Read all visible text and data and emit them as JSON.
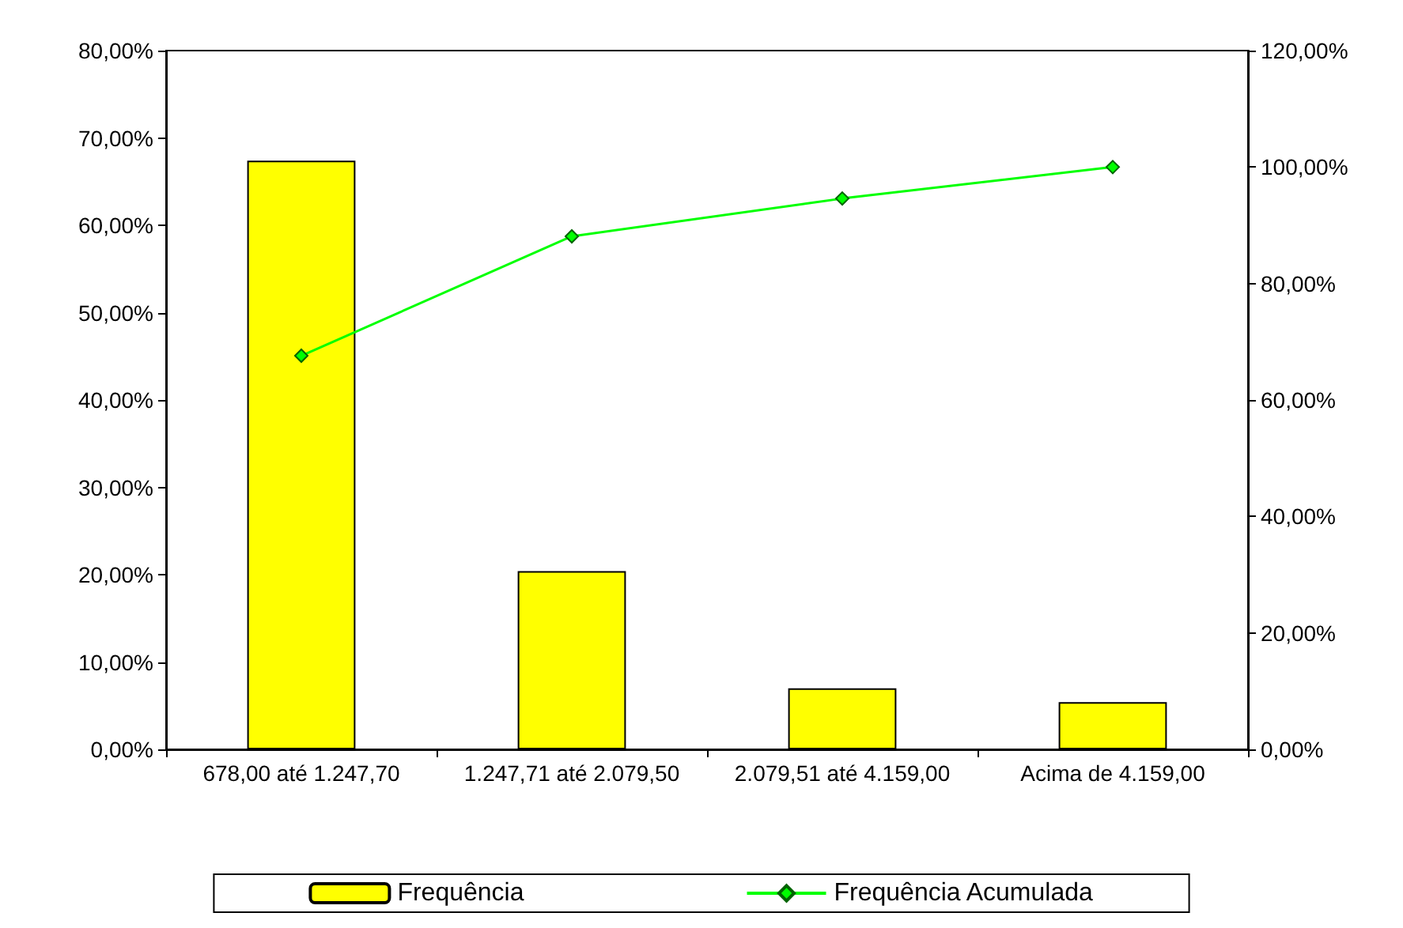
{
  "chart_data": {
    "type": "bar",
    "categories": [
      "678,00 até 1.247,70",
      "1.247,71 até 2.079,50",
      "2.079,51 até 4.159,00",
      "Acima de 4.159,00"
    ],
    "series": [
      {
        "name": "Frequência",
        "color": "#ffff00",
        "values": [
          67.4,
          20.4,
          7.0,
          5.4
        ]
      },
      {
        "name": "Frequência Acumulada",
        "type": "line",
        "axis": "y2",
        "color": "#00ff00",
        "values": [
          67.6,
          88.1,
          94.6,
          100
        ]
      }
    ],
    "ylim": [
      0,
      80
    ],
    "yticks": [
      {
        "value": 0,
        "label": "0,00%"
      },
      {
        "value": 10,
        "label": "10,00%"
      },
      {
        "value": 20,
        "label": "20,00%"
      },
      {
        "value": 30,
        "label": "30,00%"
      },
      {
        "value": 40,
        "label": "40,00%"
      },
      {
        "value": 50,
        "label": "50,00%"
      },
      {
        "value": 60,
        "label": "60,00%"
      },
      {
        "value": 70,
        "label": "70,00%"
      },
      {
        "value": 80,
        "label": "80,00%"
      }
    ],
    "y2lim": [
      0,
      120
    ],
    "y2ticks": [
      {
        "value": 0,
        "label": "0,00%"
      },
      {
        "value": 20,
        "label": "20,00%"
      },
      {
        "value": 40,
        "label": "40,00%"
      },
      {
        "value": 60,
        "label": "60,00%"
      },
      {
        "value": 80,
        "label": "80,00%"
      },
      {
        "value": 100,
        "label": "100,00%"
      },
      {
        "value": 120,
        "label": "120,00%"
      }
    ],
    "grid": false,
    "legend": "bottom",
    "marker": "diamond",
    "line_style": "solid"
  }
}
